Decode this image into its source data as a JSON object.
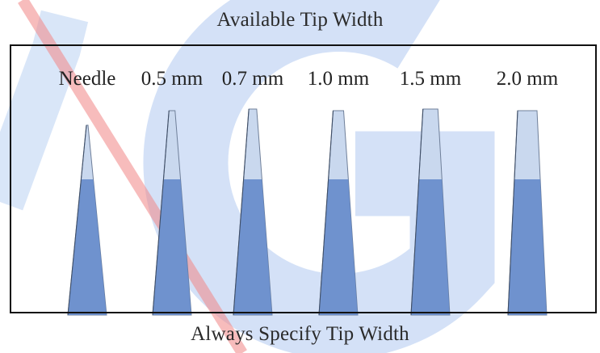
{
  "title": "Available Tip Width",
  "footer": "Always Specify Tip Width",
  "tips": [
    {
      "label": "Needle",
      "tip_width": 0.0
    },
    {
      "label": "0.5 mm",
      "tip_width": 0.5
    },
    {
      "label": "0.7 mm",
      "tip_width": 0.7
    },
    {
      "label": "1.0 mm",
      "tip_width": 1.0
    },
    {
      "label": "1.5 mm",
      "tip_width": 1.5
    },
    {
      "label": "2.0 mm",
      "tip_width": 2.0
    }
  ],
  "colors": {
    "tip_light": "#c9d8ee",
    "tip_dark": "#5f86c8",
    "tip_edge": "#6f7f99",
    "watermark_blue": "#5a8fe0",
    "watermark_red": "#ef6b6b",
    "frame": "#111111"
  }
}
